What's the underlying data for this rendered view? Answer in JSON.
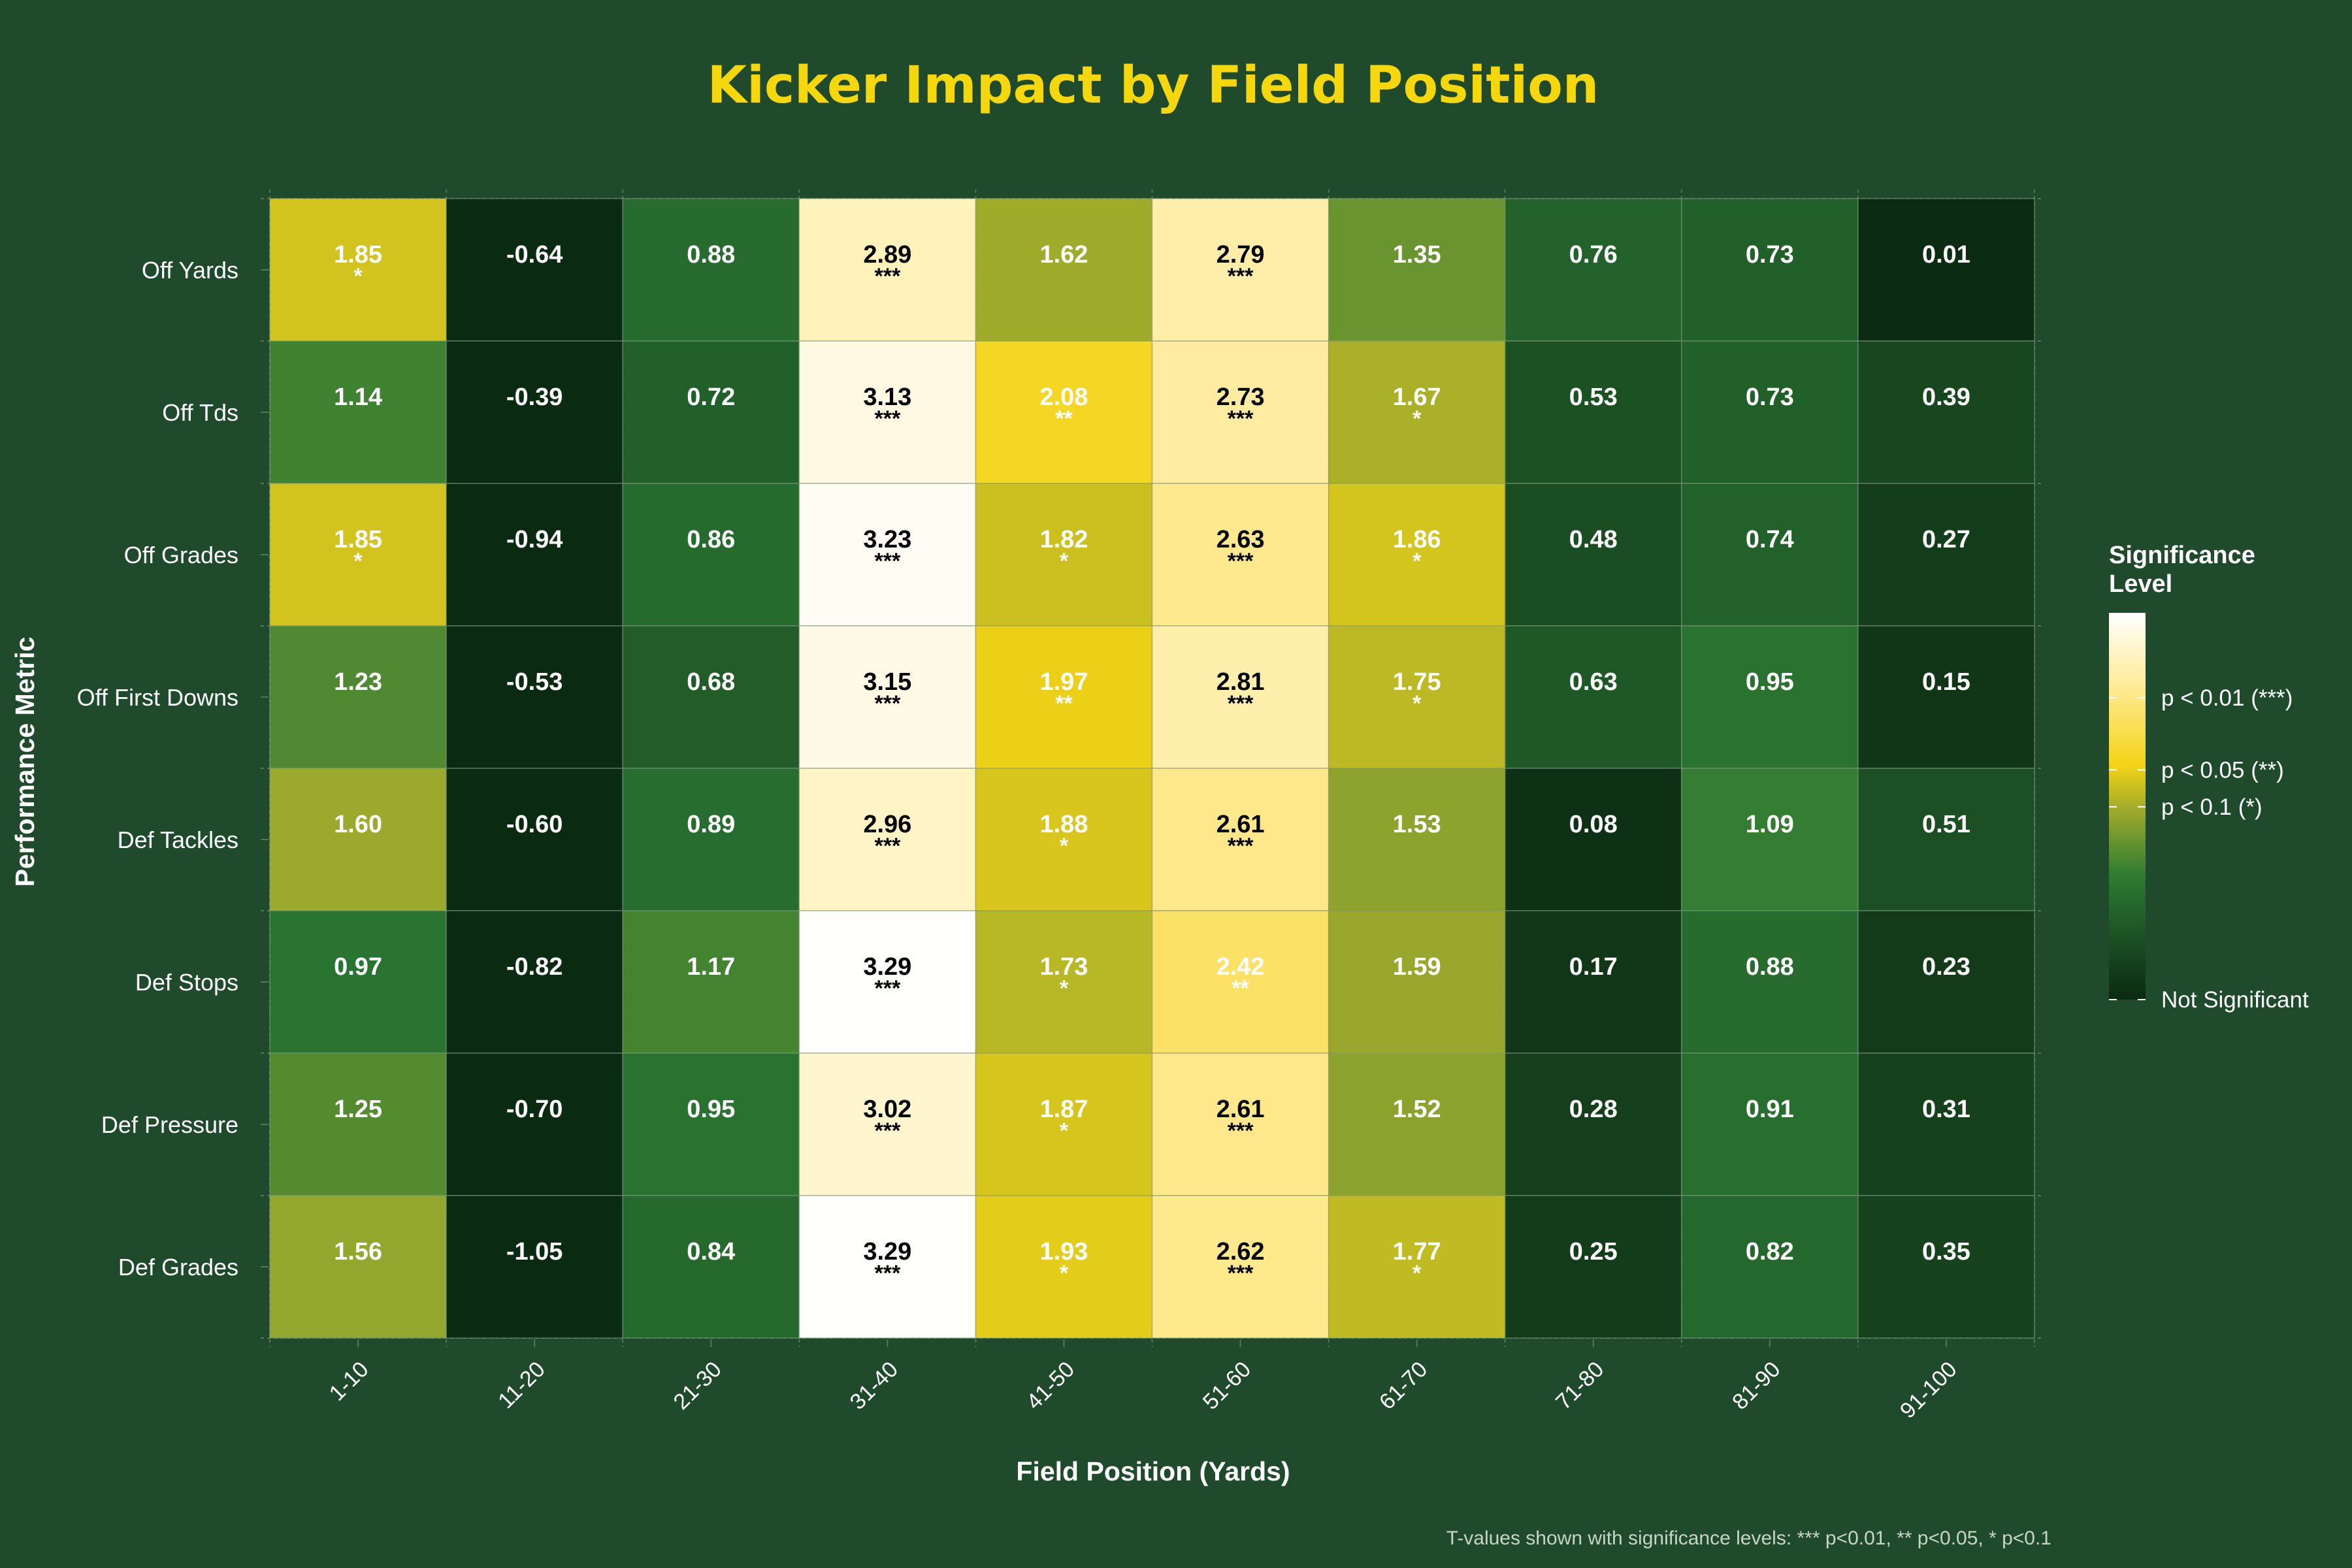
{
  "chart_data": {
    "type": "heatmap",
    "title": "Kicker Impact by Field Position",
    "xlabel": "Field Position (Yards)",
    "ylabel": "Performance Metric",
    "caption": "T-values shown with significance levels: *** p<0.01, ** p<0.05, * p<0.1",
    "x_categories": [
      "1-10",
      "11-20",
      "21-30",
      "31-40",
      "41-50",
      "51-60",
      "61-70",
      "71-80",
      "81-90",
      "91-100"
    ],
    "y_categories": [
      "Off Yards",
      "Off Tds",
      "Off Grades",
      "Off First Downs",
      "Def Tackles",
      "Def Stops",
      "Def Pressure",
      "Def Grades"
    ],
    "values": [
      [
        1.85,
        -0.64,
        0.88,
        2.89,
        1.62,
        2.79,
        1.35,
        0.76,
        0.73,
        0.01
      ],
      [
        1.14,
        -0.39,
        0.72,
        3.13,
        2.08,
        2.73,
        1.67,
        0.53,
        0.73,
        0.39
      ],
      [
        1.85,
        -0.94,
        0.86,
        3.23,
        1.82,
        2.63,
        1.86,
        0.48,
        0.74,
        0.27
      ],
      [
        1.23,
        -0.53,
        0.68,
        3.15,
        1.97,
        2.81,
        1.75,
        0.63,
        0.95,
        0.15
      ],
      [
        1.6,
        -0.6,
        0.89,
        2.96,
        1.88,
        2.61,
        1.53,
        0.08,
        1.09,
        0.51
      ],
      [
        0.97,
        -0.82,
        1.17,
        3.29,
        1.73,
        2.42,
        1.59,
        0.17,
        0.88,
        0.23
      ],
      [
        1.25,
        -0.7,
        0.95,
        3.02,
        1.87,
        2.61,
        1.52,
        0.28,
        0.91,
        0.31
      ],
      [
        1.56,
        -1.05,
        0.84,
        3.29,
        1.93,
        2.62,
        1.77,
        0.25,
        0.82,
        0.35
      ]
    ],
    "value_labels": [
      [
        "1.85",
        "-0.64",
        "0.88",
        "2.89",
        "1.62",
        "2.79",
        "1.35",
        "0.76",
        "0.73",
        "0.01"
      ],
      [
        "1.14",
        "-0.39",
        "0.72",
        "3.13",
        "2.08",
        "2.73",
        "1.67",
        "0.53",
        "0.73",
        "0.39"
      ],
      [
        "1.85",
        "-0.94",
        "0.86",
        "3.23",
        "1.82",
        "2.63",
        "1.86",
        "0.48",
        "0.74",
        "0.27"
      ],
      [
        "1.23",
        "-0.53",
        "0.68",
        "3.15",
        "1.97",
        "2.81",
        "1.75",
        "0.63",
        "0.95",
        "0.15"
      ],
      [
        "1.60",
        "-0.60",
        "0.89",
        "2.96",
        "1.88",
        "2.61",
        "1.53",
        "0.08",
        "1.09",
        "0.51"
      ],
      [
        "0.97",
        "-0.82",
        "1.17",
        "3.29",
        "1.73",
        "2.42",
        "1.59",
        "0.17",
        "0.88",
        "0.23"
      ],
      [
        "1.25",
        "-0.70",
        "0.95",
        "3.02",
        "1.87",
        "2.61",
        "1.52",
        "0.28",
        "0.91",
        "0.31"
      ],
      [
        "1.56",
        "-1.05",
        "0.84",
        "3.29",
        "1.93",
        "2.62",
        "1.77",
        "0.25",
        "0.82",
        "0.35"
      ]
    ],
    "significance": [
      [
        "*",
        "",
        "",
        "***",
        "",
        "***",
        "",
        "",
        "",
        ""
      ],
      [
        "",
        "",
        "",
        "***",
        "**",
        "***",
        "*",
        "",
        "",
        ""
      ],
      [
        "*",
        "",
        "",
        "***",
        "*",
        "***",
        "*",
        "",
        "",
        ""
      ],
      [
        "",
        "",
        "",
        "***",
        "**",
        "***",
        "*",
        "",
        "",
        ""
      ],
      [
        "",
        "",
        "",
        "***",
        "*",
        "***",
        "",
        "",
        "",
        ""
      ],
      [
        "",
        "",
        "",
        "***",
        "*",
        "**",
        "",
        "",
        "",
        ""
      ],
      [
        "",
        "",
        "",
        "***",
        "*",
        "***",
        "",
        "",
        "",
        ""
      ],
      [
        "",
        "",
        "",
        "***",
        "*",
        "***",
        "*",
        "",
        "",
        ""
      ]
    ],
    "legend": {
      "title": "Significance Level",
      "position": "right",
      "range": [
        0,
        3.3
      ],
      "breaks": [
        {
          "value": 2.576,
          "label": "p < 0.01 (***)"
        },
        {
          "value": 1.96,
          "label": "p < 0.05 (**)"
        },
        {
          "value": 1.645,
          "label": "p < 0.1 (*)"
        },
        {
          "value": 0,
          "label": "Not Significant"
        }
      ]
    },
    "color_scale": [
      {
        "value": 0.0,
        "color": "#0b2a12"
      },
      {
        "value": 0.55,
        "color": "#1d5225"
      },
      {
        "value": 1.05,
        "color": "#2c7a33"
      },
      {
        "value": 1.6,
        "color": "#9ba92c"
      },
      {
        "value": 2.0,
        "color": "#f3d316"
      },
      {
        "value": 2.6,
        "color": "#ffe88a"
      },
      {
        "value": 3.3,
        "color": "#ffffff"
      }
    ],
    "colors": {
      "background": "#1f4b2c",
      "title": "#f5d70c",
      "text": "#ffffff",
      "dark_label": "#000000"
    },
    "grid": true
  }
}
